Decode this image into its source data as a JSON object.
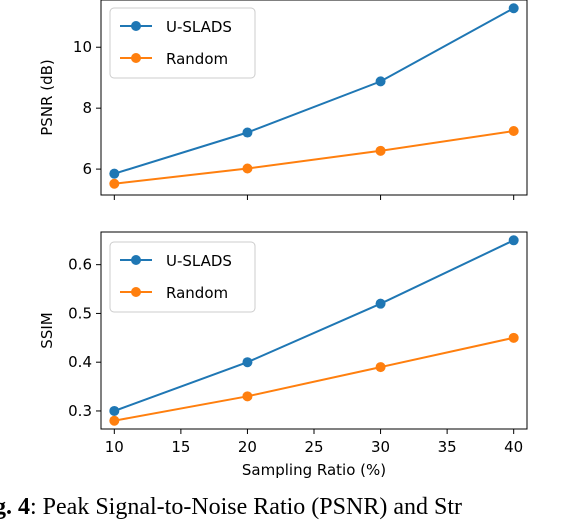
{
  "chart_data": [
    {
      "type": "line",
      "x": [
        10,
        20,
        30,
        40
      ],
      "xlabel": "",
      "ylabel": "PSNR (dB)",
      "xlim": [
        9,
        41
      ],
      "ylim": [
        5.15,
        11.55
      ],
      "yticks": [
        6,
        8,
        10
      ],
      "xticks_labels_shown": false,
      "grid": false,
      "legend": "top-left",
      "series": [
        {
          "name": "U-SLADS",
          "values": [
            5.85,
            7.2,
            8.88,
            11.28
          ],
          "color": "#1f77b4"
        },
        {
          "name": "Random",
          "values": [
            5.52,
            6.02,
            6.6,
            7.25
          ],
          "color": "#ff7f0e"
        }
      ]
    },
    {
      "type": "line",
      "x": [
        10,
        20,
        30,
        40
      ],
      "xlabel": "Sampling Ratio (%)",
      "ylabel": "SSIM",
      "xlim": [
        9,
        41
      ],
      "ylim": [
        0.263,
        0.667
      ],
      "yticks": [
        0.3,
        0.4,
        0.5,
        0.6
      ],
      "xticks": [
        10,
        15,
        20,
        25,
        30,
        35,
        40
      ],
      "grid": false,
      "legend": "top-left",
      "series": [
        {
          "name": "U-SLADS",
          "values": [
            0.3,
            0.4,
            0.52,
            0.65
          ],
          "color": "#1f77b4"
        },
        {
          "name": "Random",
          "values": [
            0.28,
            0.33,
            0.39,
            0.45
          ],
          "color": "#ff7f0e"
        }
      ]
    }
  ],
  "caption": {
    "label": "g. 4",
    "text": ": Peak Signal-to-Noise Ratio (PSNR) and Str"
  }
}
